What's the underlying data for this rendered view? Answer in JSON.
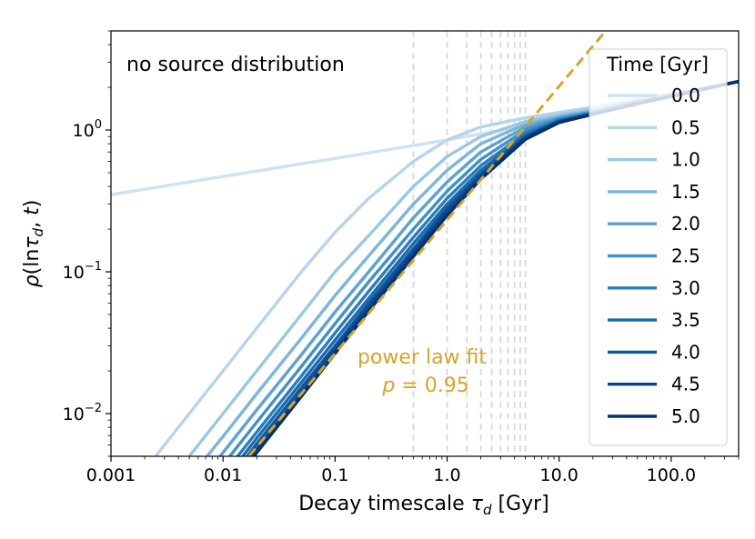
{
  "chart_data": {
    "type": "line",
    "title": "",
    "xlabel_prefix": "Decay timescale ",
    "xlabel_sym": "τ",
    "xlabel_sub": "d",
    "xlabel_suffix": " [Gyr]",
    "ylabel_rho": "ρ",
    "ylabel_open": "(ln",
    "ylabel_tau": "τ",
    "ylabel_sub": "d",
    "ylabel_comma": ", ",
    "ylabel_t": "t",
    "ylabel_close": ")",
    "x_scale": "log",
    "y_scale": "log",
    "xlim": [
      0.001,
      400
    ],
    "ylim": [
      0.005,
      5
    ],
    "x_ticks": [
      {
        "value": 0.001,
        "label": "0.001"
      },
      {
        "value": 0.01,
        "label": "0.01"
      },
      {
        "value": 0.1,
        "label": "0.1"
      },
      {
        "value": 1,
        "label": "1.0"
      },
      {
        "value": 10,
        "label": "10.0"
      },
      {
        "value": 100,
        "label": "100.0"
      }
    ],
    "y_ticks": [
      {
        "value": 0.01,
        "base": "10",
        "exp": "−2"
      },
      {
        "value": 0.1,
        "base": "10",
        "exp": "−1"
      },
      {
        "value": 1,
        "base": "10",
        "exp": "0"
      }
    ],
    "annotation": "no source distribution",
    "fit_label": "power law fit",
    "fit_p_symbol": "p",
    "fit_p_value": " = 0.95",
    "fit_exponent": 0.95,
    "fit_color": "#d4a52c",
    "fit_line": {
      "x": [
        0.017,
        26
      ],
      "y": [
        0.005,
        5
      ]
    },
    "vertical_lines_x": [
      0.5,
      1.0,
      1.5,
      2.0,
      2.5,
      3.0,
      3.5,
      4.0,
      4.5,
      5.0
    ],
    "legend_title": "Time [Gyr]",
    "legend_position": "upper right",
    "series": [
      {
        "name": "0.0",
        "color": "#cfe1f2",
        "x": [
          0.001,
          0.01,
          0.1,
          1,
          10,
          100,
          400
        ],
        "y": [
          0.35,
          0.47,
          0.63,
          0.85,
          1.18,
          1.7,
          2.2
        ]
      },
      {
        "name": "0.5",
        "color": "#b7d4ea",
        "x": [
          0.0025,
          0.005,
          0.01,
          0.02,
          0.05,
          0.1,
          0.2,
          0.5,
          1,
          2,
          5,
          10,
          20,
          50,
          100,
          400
        ],
        "y": [
          0.005,
          0.01,
          0.02,
          0.04,
          0.1,
          0.19,
          0.33,
          0.6,
          0.85,
          1.05,
          1.22,
          1.33,
          1.45,
          1.65,
          1.8,
          2.2
        ]
      },
      {
        "name": "1.0",
        "color": "#9ac8e0",
        "x": [
          0.005,
          0.01,
          0.02,
          0.05,
          0.1,
          0.2,
          0.5,
          1,
          2,
          5,
          10,
          20,
          50,
          100,
          400
        ],
        "y": [
          0.005,
          0.01,
          0.02,
          0.05,
          0.1,
          0.18,
          0.4,
          0.65,
          0.9,
          1.15,
          1.28,
          1.4,
          1.62,
          1.78,
          2.2
        ]
      },
      {
        "name": "1.5",
        "color": "#7ab6d9",
        "x": [
          0.0072,
          0.01,
          0.02,
          0.05,
          0.1,
          0.2,
          0.5,
          1,
          2,
          5,
          10,
          20,
          50,
          100,
          400
        ],
        "y": [
          0.005,
          0.0069,
          0.0138,
          0.034,
          0.068,
          0.13,
          0.3,
          0.52,
          0.8,
          1.1,
          1.24,
          1.37,
          1.6,
          1.77,
          2.2
        ]
      },
      {
        "name": "2.0",
        "color": "#5ba3d0",
        "x": [
          0.0094,
          0.02,
          0.05,
          0.1,
          0.2,
          0.5,
          1,
          2,
          5,
          10,
          20,
          50,
          100,
          400
        ],
        "y": [
          0.005,
          0.0106,
          0.026,
          0.052,
          0.1,
          0.24,
          0.43,
          0.7,
          1.05,
          1.22,
          1.35,
          1.58,
          1.76,
          2.2
        ]
      },
      {
        "name": "2.5",
        "color": "#4191c6",
        "x": [
          0.0115,
          0.02,
          0.05,
          0.1,
          0.2,
          0.5,
          1,
          2,
          5,
          10,
          20,
          50,
          100,
          400
        ],
        "y": [
          0.005,
          0.0087,
          0.0215,
          0.043,
          0.085,
          0.2,
          0.37,
          0.62,
          1.0,
          1.2,
          1.33,
          1.57,
          1.75,
          2.2
        ]
      },
      {
        "name": "3.0",
        "color": "#2c7bba",
        "x": [
          0.0135,
          0.02,
          0.05,
          0.1,
          0.2,
          0.5,
          1,
          2,
          5,
          10,
          20,
          50,
          100,
          400
        ],
        "y": [
          0.005,
          0.0074,
          0.0184,
          0.037,
          0.073,
          0.175,
          0.33,
          0.56,
          0.95,
          1.18,
          1.32,
          1.56,
          1.74,
          2.2
        ]
      },
      {
        "name": "3.5",
        "color": "#1b69af",
        "x": [
          0.015,
          0.02,
          0.05,
          0.1,
          0.2,
          0.5,
          1,
          2,
          5,
          10,
          20,
          50,
          100,
          400
        ],
        "y": [
          0.005,
          0.0067,
          0.0166,
          0.033,
          0.065,
          0.158,
          0.3,
          0.52,
          0.92,
          1.16,
          1.31,
          1.55,
          1.74,
          2.2
        ]
      },
      {
        "name": "4.0",
        "color": "#0b559f",
        "x": [
          0.0165,
          0.02,
          0.05,
          0.1,
          0.2,
          0.5,
          1,
          2,
          5,
          10,
          20,
          50,
          100,
          400
        ],
        "y": [
          0.005,
          0.0061,
          0.0152,
          0.03,
          0.06,
          0.145,
          0.28,
          0.49,
          0.9,
          1.15,
          1.3,
          1.54,
          1.73,
          2.2
        ]
      },
      {
        "name": "4.5",
        "color": "#08458a",
        "x": [
          0.018,
          0.02,
          0.05,
          0.1,
          0.2,
          0.5,
          1,
          2,
          5,
          10,
          20,
          50,
          100,
          400
        ],
        "y": [
          0.005,
          0.0056,
          0.014,
          0.028,
          0.056,
          0.136,
          0.265,
          0.47,
          0.88,
          1.14,
          1.29,
          1.54,
          1.73,
          2.2
        ]
      },
      {
        "name": "5.0",
        "color": "#08306b",
        "x": [
          0.019,
          0.02,
          0.05,
          0.1,
          0.2,
          0.5,
          1,
          2,
          5,
          10,
          20,
          50,
          100,
          400
        ],
        "y": [
          0.005,
          0.0053,
          0.0132,
          0.0265,
          0.053,
          0.128,
          0.25,
          0.45,
          0.86,
          1.13,
          1.29,
          1.53,
          1.73,
          2.2
        ]
      }
    ]
  }
}
